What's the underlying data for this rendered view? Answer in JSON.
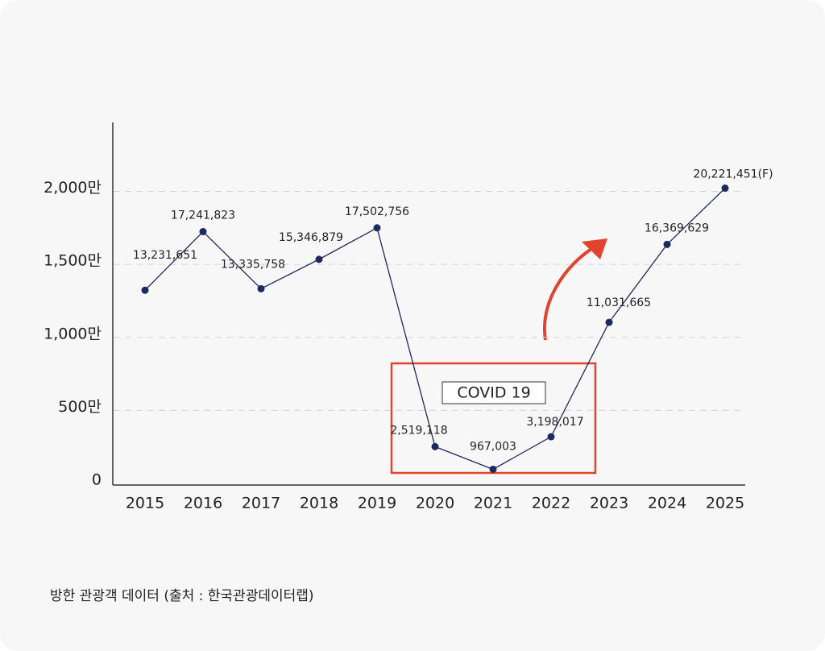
{
  "chart_data": {
    "type": "line",
    "categories": [
      "2015",
      "2016",
      "2017",
      "2018",
      "2019",
      "2020",
      "2021",
      "2022",
      "2023",
      "2024",
      "2025"
    ],
    "series": [
      {
        "color": "#1e2a5e",
        "values": [
          13231651,
          17241823,
          13335758,
          15346879,
          17502756,
          2519118,
          967003,
          3198017,
          11031665,
          16369629,
          20221451
        ],
        "value_labels": [
          "13,231,651",
          "17,241,823",
          "13,335,758",
          "15,346,879",
          "17,502,756",
          "2,519,118",
          "967,003",
          "3,198,017",
          "11,031,665",
          "16,369,629",
          "20,221,451(F)"
        ]
      }
    ],
    "ylim": [
      0,
      24500000
    ],
    "yticks": [
      0,
      {
        "value": 5000000,
        "label": "500만"
      },
      {
        "value": 10000000,
        "label": "1,000만"
      },
      {
        "value": 15000000,
        "label": "1,500만"
      },
      {
        "value": 20000000,
        "label": "2,000만"
      }
    ],
    "grid": true,
    "annotation": "COVID 19",
    "source": "방한 관광객 데이터 (출처 : 한국관광데이터랩)"
  }
}
